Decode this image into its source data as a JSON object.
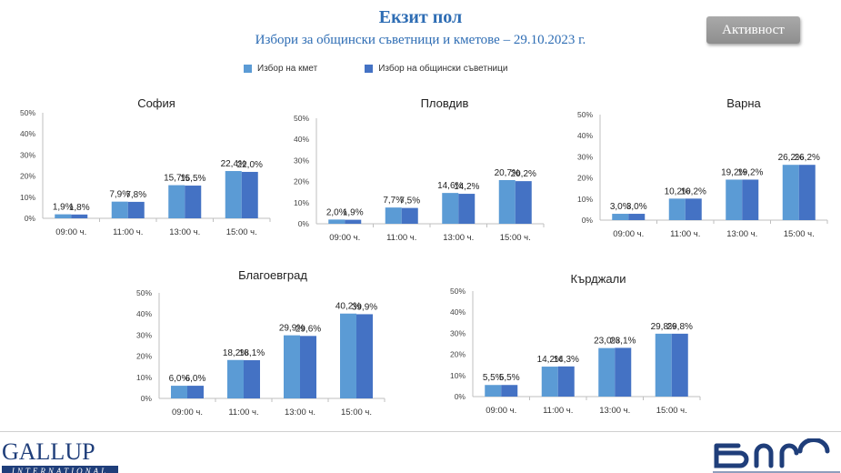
{
  "header": {
    "title": "Екзит пол",
    "subtitle": "Избори за общински съветници и кметове – 29.10.2023  г.",
    "activity_button": "Активност"
  },
  "legend": [
    {
      "label": "Избор на кмет",
      "color": "#5b9bd5"
    },
    {
      "label": "Избор на общински съветници",
      "color": "#4472c4"
    }
  ],
  "logos": {
    "gallup_main": "GALLUP",
    "gallup_sub": "INTERNATIONAL",
    "bnr": "бнр"
  },
  "chart_data": [
    {
      "type": "bar",
      "title": "София",
      "categories": [
        "09:00 ч.",
        "11:00 ч.",
        "13:00 ч.",
        "15:00 ч."
      ],
      "series": [
        {
          "name": "Избор на кмет",
          "values": [
            1.9,
            7.9,
            15.7,
            22.4
          ]
        },
        {
          "name": "Избор на общински съветници",
          "values": [
            1.8,
            7.8,
            15.5,
            22.0
          ]
        }
      ],
      "labels": [
        [
          "1,9%",
          "7,9%",
          "15,7%",
          "22,4%"
        ],
        [
          "1,8%",
          "7,8%",
          "15,5%",
          "22,0%"
        ]
      ],
      "yticks": [
        "0%",
        "10%",
        "20%",
        "30%",
        "40%",
        "50%"
      ],
      "ylim": [
        0,
        50
      ]
    },
    {
      "type": "bar",
      "title": "Пловдив",
      "categories": [
        "09:00 ч.",
        "11:00 ч.",
        "13:00 ч.",
        "15:00 ч."
      ],
      "series": [
        {
          "name": "Избор на кмет",
          "values": [
            2.0,
            7.7,
            14.6,
            20.7
          ]
        },
        {
          "name": "Избор на общински съветници",
          "values": [
            1.9,
            7.5,
            14.2,
            20.2
          ]
        }
      ],
      "labels": [
        [
          "2,0%",
          "7,7%",
          "14,6%",
          "20,7%"
        ],
        [
          "1,9%",
          "7,5%",
          "14,2%",
          "20,2%"
        ]
      ],
      "yticks": [
        "0%",
        "10%",
        "20%",
        "30%",
        "40%",
        "50%"
      ],
      "ylim": [
        0,
        50
      ]
    },
    {
      "type": "bar",
      "title": "Варна",
      "categories": [
        "09:00 ч.",
        "11:00 ч.",
        "13:00 ч.",
        "15:00 ч."
      ],
      "series": [
        {
          "name": "Избор на кмет",
          "values": [
            3.0,
            10.2,
            19.2,
            26.2
          ]
        },
        {
          "name": "Избор на общински съветници",
          "values": [
            3.0,
            10.2,
            19.2,
            26.2
          ]
        }
      ],
      "labels": [
        [
          "3,0%",
          "10,2%",
          "19,2%",
          "26,2%"
        ],
        [
          "3,0%",
          "10,2%",
          "19,2%",
          "26,2%"
        ]
      ],
      "yticks": [
        "0%",
        "10%",
        "20%",
        "30%",
        "40%",
        "50%"
      ],
      "ylim": [
        0,
        50
      ]
    },
    {
      "type": "bar",
      "title": "Благоевград",
      "categories": [
        "09:00 ч.",
        "11:00 ч.",
        "13:00 ч.",
        "15:00 ч."
      ],
      "series": [
        {
          "name": "Избор на кмет",
          "values": [
            6.0,
            18.2,
            29.9,
            40.2
          ]
        },
        {
          "name": "Избор на общински съветници",
          "values": [
            6.0,
            18.1,
            29.6,
            39.9
          ]
        }
      ],
      "labels": [
        [
          "6,0%",
          "18,2%",
          "29,9%",
          "40,2%"
        ],
        [
          "6,0%",
          "18,1%",
          "29,6%",
          "39,9%"
        ]
      ],
      "yticks": [
        "0%",
        "10%",
        "20%",
        "30%",
        "40%",
        "50%"
      ],
      "ylim": [
        0,
        50
      ]
    },
    {
      "type": "bar",
      "title": "Кърджали",
      "categories": [
        "09:00 ч.",
        "11:00 ч.",
        "13:00 ч.",
        "15:00 ч."
      ],
      "series": [
        {
          "name": "Избор на кмет",
          "values": [
            5.5,
            14.2,
            23.0,
            29.8
          ]
        },
        {
          "name": "Избор на общински съветници",
          "values": [
            5.5,
            14.3,
            23.1,
            29.8
          ]
        }
      ],
      "labels": [
        [
          "5,5%",
          "14,2%",
          "23,0%",
          "29,8%"
        ],
        [
          "5,5%",
          "14,3%",
          "23,1%",
          "29,8%"
        ]
      ],
      "yticks": [
        "0%",
        "10%",
        "20%",
        "30%",
        "40%",
        "50%"
      ],
      "ylim": [
        0,
        50
      ]
    }
  ]
}
